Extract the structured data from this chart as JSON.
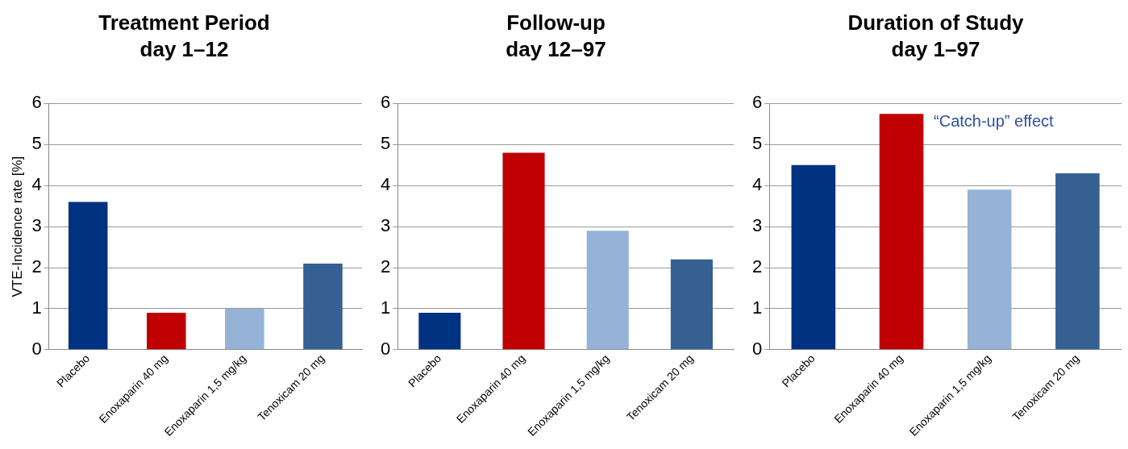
{
  "chart_data": [
    {
      "type": "bar",
      "title": "Treatment Period",
      "subtitle": "day 1–12",
      "ylabel": "VTE-Incidence rate [%]",
      "categories": [
        "Placebo",
        "Enoxaparin 40 mg",
        "Enoxaparin 1,5 mg/kg",
        "Tenoxicam 20 mg"
      ],
      "values": [
        3.6,
        0.9,
        1.0,
        2.1
      ],
      "colors": [
        "#003282",
        "#c00000",
        "#95b3d7",
        "#366092"
      ],
      "ylim": [
        0,
        6
      ],
      "yticks": [
        0,
        1,
        2,
        3,
        4,
        5,
        6
      ],
      "grid": "y",
      "legend": false
    },
    {
      "type": "bar",
      "title": "Follow-up",
      "subtitle": "day 12–97",
      "categories": [
        "Placebo",
        "Enoxaparin 40 mg",
        "Enoxaparin 1,5 mg/kg",
        "Tenoxicam 20 mg"
      ],
      "values": [
        0.9,
        4.8,
        2.9,
        2.2
      ],
      "colors": [
        "#003282",
        "#c00000",
        "#95b3d7",
        "#366092"
      ],
      "ylim": [
        0,
        6
      ],
      "yticks": [
        0,
        1,
        2,
        3,
        4,
        5,
        6
      ],
      "grid": "y",
      "legend": false
    },
    {
      "type": "bar",
      "title": "Duration of Study",
      "subtitle": "day 1–97",
      "categories": [
        "Placebo",
        "Enoxaparin 40 mg",
        "Enoxaparin 1,5 mg/kg",
        "Tenoxicam 20 mg"
      ],
      "values": [
        4.5,
        5.75,
        3.9,
        4.3
      ],
      "colors": [
        "#003282",
        "#c00000",
        "#95b3d7",
        "#366092"
      ],
      "ylim": [
        0,
        6
      ],
      "yticks": [
        0,
        1,
        2,
        3,
        4,
        5,
        6
      ],
      "grid": "y",
      "legend": false,
      "annotations": [
        {
          "text": "“Catch-up” effect",
          "x": "Enoxaparin 40 mg",
          "y": 5.75
        }
      ]
    }
  ]
}
